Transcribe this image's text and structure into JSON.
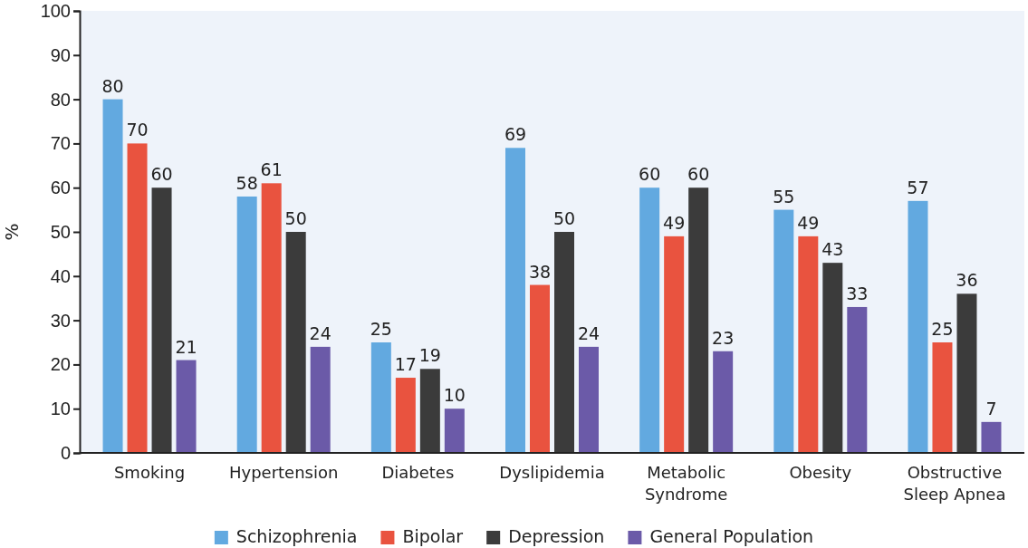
{
  "chart_data": {
    "type": "bar",
    "ylabel": "%",
    "categories": [
      "Smoking",
      "Hypertension",
      "Diabetes",
      "Dyslipidemia",
      "Metabolic Syndrome",
      "Obesity",
      "Obstructive Sleep Apnea"
    ],
    "series": [
      {
        "name": "Schizophrenia",
        "color": "#62a9e0",
        "values": [
          80,
          58,
          25,
          69,
          60,
          55,
          57
        ]
      },
      {
        "name": "Bipolar",
        "color": "#e9533f",
        "values": [
          70,
          61,
          17,
          38,
          49,
          49,
          25
        ]
      },
      {
        "name": "Depression",
        "color": "#3b3b3b",
        "values": [
          60,
          50,
          19,
          50,
          60,
          43,
          36
        ]
      },
      {
        "name": "General Population",
        "color": "#6b5aa8",
        "values": [
          21,
          24,
          10,
          24,
          23,
          33,
          7
        ]
      }
    ],
    "ylim": [
      0,
      100
    ],
    "yticks": [
      0,
      10,
      20,
      30,
      40,
      50,
      60,
      70,
      80,
      90,
      100
    ],
    "data_labels": true,
    "legend": "bottom",
    "grid": false
  }
}
